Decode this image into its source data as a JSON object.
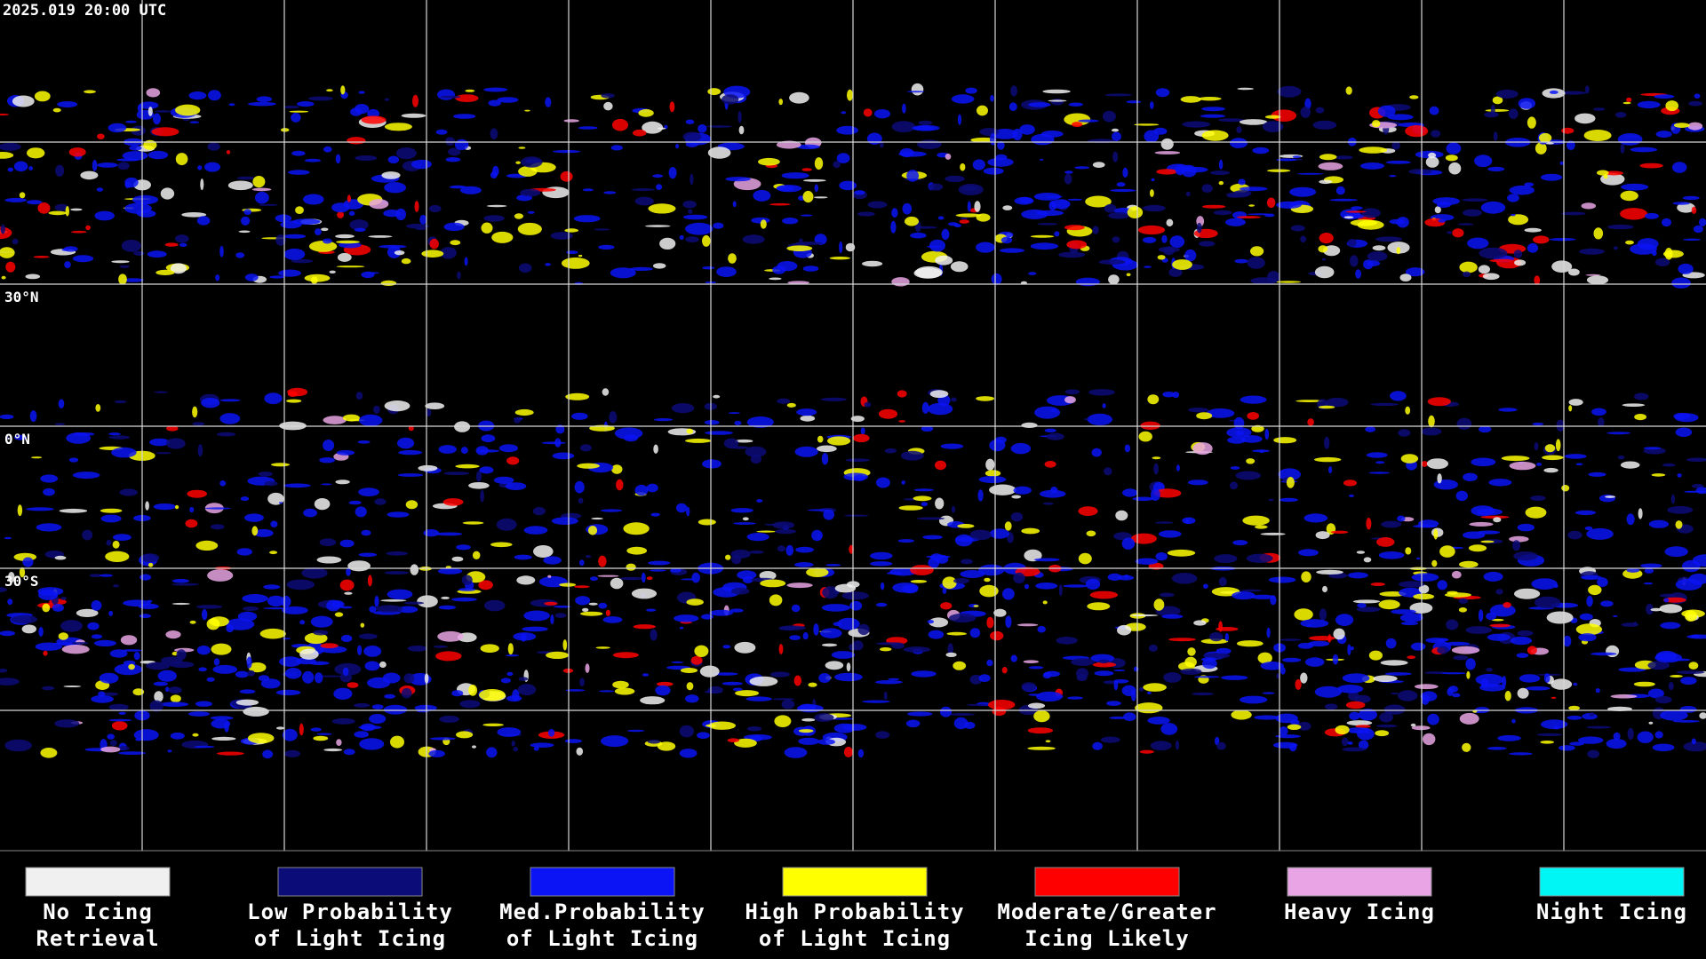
{
  "timestamp": "2025.019 20:00 UTC",
  "latitude_labels": [
    "30°N",
    "0°N",
    "30°S"
  ],
  "legend": [
    {
      "lines": [
        "No Icing",
        "Retrieval"
      ],
      "color": "#f0f0f0"
    },
    {
      "lines": [
        "Low Probability",
        "of Light Icing"
      ],
      "color": "#0c0c78"
    },
    {
      "lines": [
        "Med.Probability",
        "of Light Icing"
      ],
      "color": "#0a14f5"
    },
    {
      "lines": [
        "High Probability",
        "of Light Icing"
      ],
      "color": "#ffff00"
    },
    {
      "lines": [
        "Moderate/Greater",
        "Icing Likely"
      ],
      "color": "#ff0000"
    },
    {
      "lines": [
        "Heavy Icing"
      ],
      "color": "#e8a4e4"
    },
    {
      "lines": [
        "Night Icing"
      ],
      "color": "#00f5f5"
    }
  ]
}
